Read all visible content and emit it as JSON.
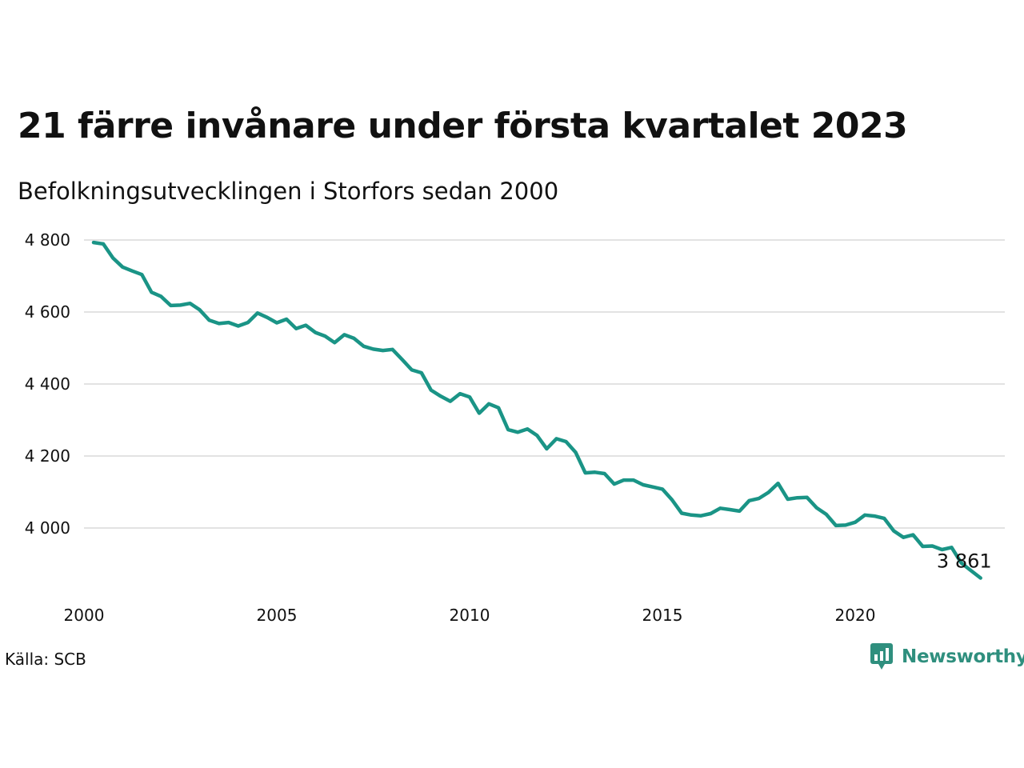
{
  "title": "21 färre invånare under första kvartalet 2023",
  "subtitle": "Befolkningsutvecklingen i Storfors sedan 2000",
  "source": "Källa: SCB",
  "logo": {
    "text": "Newsworthy",
    "icon": "chart-bubble-icon",
    "color": "#2f8f7e"
  },
  "chart_data": {
    "type": "line",
    "title": "21 färre invånare under första kvartalet 2023",
    "subtitle": "Befolkningsutvecklingen i Storfors sedan 2000",
    "xlabel": "",
    "ylabel": "",
    "xlim": [
      2000.0,
      2023.25
    ],
    "ylim": [
      3830,
      4810
    ],
    "x_ticks": [
      2000,
      2005,
      2010,
      2015,
      2020
    ],
    "x_tick_labels": [
      "2000",
      "2005",
      "2010",
      "2015",
      "2020"
    ],
    "y_ticks": [
      4000,
      4200,
      4400,
      4600,
      4800
    ],
    "y_tick_labels": [
      "4 000",
      "4 200",
      "4 400",
      "4 600",
      "4 800"
    ],
    "grid": true,
    "line_color": "#1a9486",
    "end_label": "3 861",
    "series": [
      {
        "x_start": 2000.25,
        "x_step": 0.25,
        "values": [
          4793,
          4789,
          4750,
          4725,
          4714,
          4704,
          4655,
          4643,
          4618,
          4619,
          4624,
          4606,
          4577,
          4568,
          4571,
          4561,
          4571,
          4597,
          4585,
          4570,
          4580,
          4554,
          4563,
          4543,
          4533,
          4515,
          4537,
          4527,
          4505,
          4497,
          4493,
          4496,
          4468,
          4439,
          4431,
          4383,
          4366,
          4352,
          4373,
          4364,
          4319,
          4345,
          4334,
          4273,
          4266,
          4275,
          4257,
          4220,
          4248,
          4240,
          4210,
          4153,
          4155,
          4151,
          4122,
          4133,
          4133,
          4120,
          4114,
          4108,
          4078,
          4041,
          4036,
          4034,
          4040,
          4055,
          4051,
          4047,
          4076,
          4082,
          4099,
          4124,
          4080,
          4084,
          4085,
          4056,
          4038,
          4007,
          4008,
          4016,
          4036,
          4033,
          4027,
          3992,
          3974,
          3981,
          3949,
          3950,
          3940,
          3946,
          3903,
          3882,
          3861
        ]
      }
    ]
  }
}
